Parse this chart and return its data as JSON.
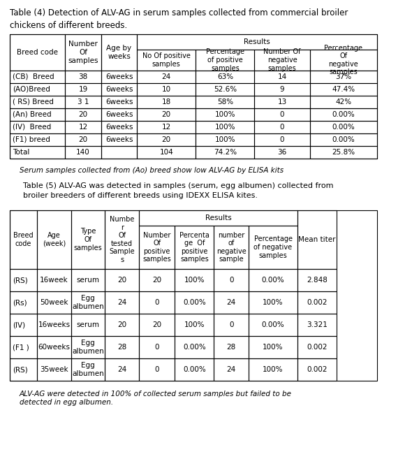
{
  "title4": "Table (4) Detection of ALV-AG in serum samples collected from commercial broiler\nchickens of different breeds.",
  "title5": "Table (5) ALV-AG was detected in samples (serum, egg albumen) collected from\nbroiler breeders of different breeds using IDEXX ELISA kites.",
  "footnote4": "Serum samples collected from (Ao) breed show low ALV-AG by ELISA kits",
  "footnote5": "ALV-AG were detected in 100% of collected serum samples but failed to be\ndetected in egg albumen.",
  "table4_header1": [
    "Breed code",
    "Number\nOf\nsamples",
    "Age by\nweeks"
  ],
  "table4_header2": [
    "No Of positive\nsamples",
    "Percentage\nof positive\nsamples",
    "Number Of\nnegative\nsamples",
    "Percentage\nOf\nnegative\nsamples"
  ],
  "table4_results_label": "Results",
  "table4_rows": [
    [
      "(CB)  Breed",
      "38",
      "6weeks",
      "24",
      "63%",
      "14",
      "37%"
    ],
    [
      "(AO)Breed",
      "19",
      "6weeks",
      "10",
      "52.6%",
      "9",
      "47.4%"
    ],
    [
      "( RS) Breed",
      "3 1",
      "6weeks",
      "18",
      "58%",
      "13",
      "42%"
    ],
    [
      "(An) Breed",
      "20",
      "6weeks",
      "20",
      "100%",
      "0",
      "0.00%"
    ],
    [
      "(IV)  Breed",
      "12",
      "6weeks",
      "12",
      "100%",
      "0",
      "0.00%"
    ],
    [
      "(F1) breed",
      "20",
      "6weeks",
      "20",
      "100%",
      "0",
      "0.00%"
    ],
    [
      "Total",
      "140",
      "",
      "104",
      "74.2%",
      "36",
      "25.8%"
    ]
  ],
  "table5_header1": [
    "Breed\ncode",
    "Age\n(week)",
    "Type\nOf\nsamples",
    "Numbe\nr\nOf\ntested\nSample\ns"
  ],
  "table5_header2": [
    "Number\nOf\npositive\nsamples",
    "Percenta\nge  Of\npositive\nsamples",
    "number\nof\nnegative\nsample",
    "Percentage\nof negative\nsamples"
  ],
  "table5_results_label": "Results",
  "table5_mean_titer": "Mean titer",
  "table5_rows": [
    [
      "(RS)",
      "16week",
      "serum",
      "20",
      "20",
      "100%",
      "0",
      "0.00%",
      "2.848"
    ],
    [
      "(Rs)",
      "50week",
      "Egg\nalbumen",
      "24",
      "0",
      "0.00%",
      "24",
      "100%",
      "0.002"
    ],
    [
      "(IV)",
      "16weeks",
      "serum",
      "20",
      "20",
      "100%",
      "0",
      "0.00%",
      "3.321"
    ],
    [
      "(F1 )",
      "60weeks",
      "Egg\nalbumen",
      "28",
      "0",
      "0.00%",
      "28",
      "100%",
      "0.002"
    ],
    [
      "(RS)",
      "35week",
      "Egg\nalbumen",
      "24",
      "0",
      "0.00%",
      "24",
      "100%",
      "0.002"
    ]
  ],
  "bg_color": "#ffffff",
  "text_color": "#000000",
  "line_color": "#000000",
  "fontsize": 7.5,
  "title_fontsize": 8.5
}
